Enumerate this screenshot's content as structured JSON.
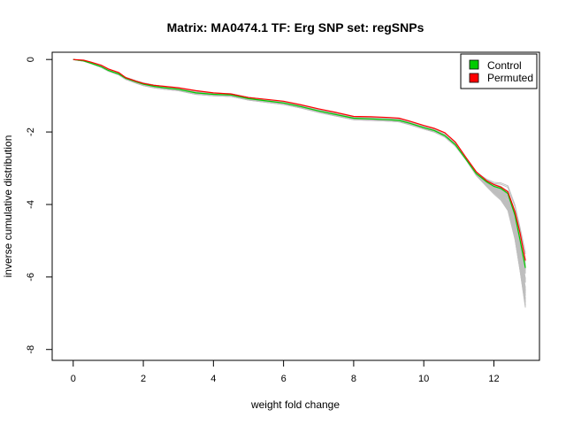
{
  "chart_data": {
    "type": "line",
    "title": "Matrix: MA0474.1 TF: Erg SNP set: regSNPs",
    "xlabel": "weight fold change",
    "ylabel": "inverse cumulative distribution",
    "xlim": [
      -0.6,
      13.3
    ],
    "ylim": [
      -8.3,
      0.2
    ],
    "xticks": [
      0,
      2,
      4,
      6,
      8,
      10,
      12
    ],
    "yticks": [
      0,
      -2,
      -4,
      -6,
      -8
    ],
    "legend_position": "top-right",
    "colors": {
      "control": "#00cc00",
      "permuted": "#ff0000",
      "background": "#bebebe"
    },
    "series": [
      {
        "name": "Control",
        "x": [
          0,
          0.3,
          0.5,
          0.8,
          1.0,
          1.3,
          1.5,
          1.8,
          2.0,
          2.3,
          2.6,
          3.0,
          3.5,
          4.0,
          4.5,
          5.0,
          5.5,
          6.0,
          6.5,
          7.0,
          7.5,
          8.0,
          8.5,
          9.0,
          9.3,
          9.6,
          10.0,
          10.3,
          10.6,
          10.9,
          11.2,
          11.5,
          11.8,
          12.0,
          12.2,
          12.4,
          12.6,
          12.75,
          12.9
        ],
        "values": [
          0,
          -0.04,
          -0.1,
          -0.2,
          -0.3,
          -0.4,
          -0.52,
          -0.62,
          -0.68,
          -0.74,
          -0.78,
          -0.82,
          -0.92,
          -0.96,
          -0.98,
          -1.08,
          -1.14,
          -1.2,
          -1.3,
          -1.42,
          -1.52,
          -1.62,
          -1.64,
          -1.66,
          -1.68,
          -1.76,
          -1.88,
          -1.96,
          -2.1,
          -2.35,
          -2.75,
          -3.15,
          -3.38,
          -3.5,
          -3.56,
          -3.7,
          -4.3,
          -5.0,
          -5.75
        ]
      },
      {
        "name": "Permuted",
        "x": [
          0,
          0.3,
          0.5,
          0.8,
          1.0,
          1.3,
          1.5,
          1.8,
          2.0,
          2.3,
          2.6,
          3.0,
          3.5,
          4.0,
          4.5,
          5.0,
          5.5,
          6.0,
          6.5,
          7.0,
          7.5,
          8.0,
          8.5,
          9.0,
          9.3,
          9.6,
          10.0,
          10.3,
          10.6,
          10.9,
          11.2,
          11.5,
          11.8,
          12.0,
          12.2,
          12.4,
          12.6,
          12.75,
          12.9
        ],
        "values": [
          0,
          -0.02,
          -0.07,
          -0.16,
          -0.26,
          -0.36,
          -0.5,
          -0.6,
          -0.66,
          -0.71,
          -0.74,
          -0.78,
          -0.86,
          -0.92,
          -0.95,
          -1.05,
          -1.1,
          -1.15,
          -1.25,
          -1.36,
          -1.46,
          -1.57,
          -1.58,
          -1.6,
          -1.62,
          -1.7,
          -1.82,
          -1.9,
          -2.02,
          -2.28,
          -2.7,
          -3.1,
          -3.35,
          -3.45,
          -3.52,
          -3.65,
          -4.2,
          -4.8,
          -5.55
        ]
      }
    ]
  }
}
